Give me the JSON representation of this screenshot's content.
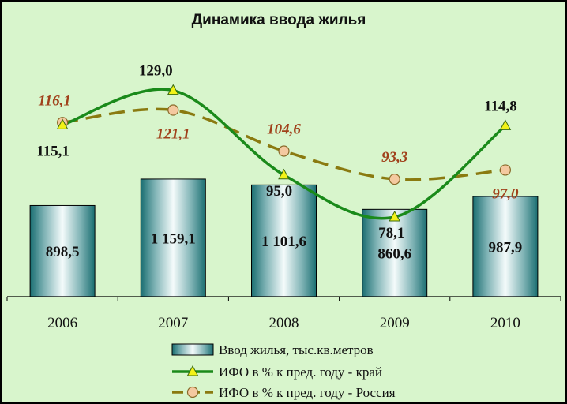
{
  "chart_data": {
    "type": "bar",
    "title": "Динамика ввода жилья",
    "categories": [
      "2006",
      "2007",
      "2008",
      "2009",
      "2010"
    ],
    "series": [
      {
        "name": "Ввод жилья, тыс.кв.метров",
        "type": "bar",
        "axis": "primary",
        "values": [
          898.5,
          1159.1,
          1101.6,
          860.6,
          987.9
        ],
        "labels": [
          "898,5",
          "1 159,1",
          "1 101,6",
          "860,6",
          "987,9"
        ],
        "color": "#1f6f72"
      },
      {
        "name": "ИФО в % к пред. году - край",
        "type": "line",
        "axis": "secondary",
        "values": [
          115.1,
          129.0,
          95.0,
          78.1,
          114.8
        ],
        "labels": [
          "115,1",
          "129,0",
          "95,0",
          "78,1",
          "114,8"
        ],
        "color": "#1a8a1a",
        "marker": "triangle",
        "marker_color": "#f2f218"
      },
      {
        "name": "ИФО в % к пред. году - Россия",
        "type": "line",
        "axis": "secondary",
        "values": [
          116.1,
          121.1,
          104.6,
          93.3,
          97.0
        ],
        "labels": [
          "116,1",
          "121,1",
          "104,6",
          "93,3",
          "97,0"
        ],
        "color": "#8a7a10",
        "marker": "circle",
        "marker_color": "#f4c9a0",
        "line_style": "dashed"
      }
    ],
    "ylim": [
      0,
      1800
    ],
    "y2lim": [
      40,
      150
    ],
    "grid": false,
    "legend_position": "bottom",
    "background_color": "#d8f5cc"
  }
}
